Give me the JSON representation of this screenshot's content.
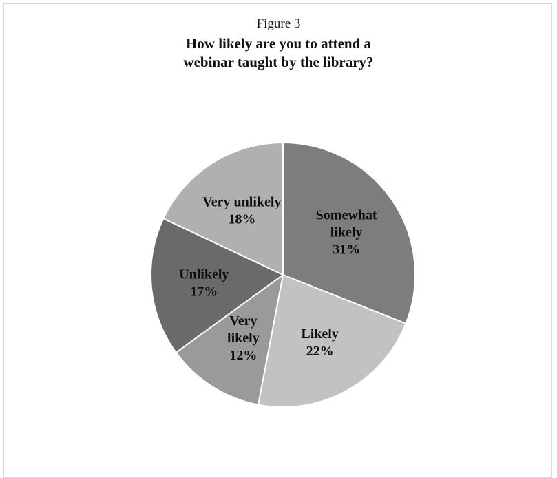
{
  "figure_label": "Figure 3",
  "chart_data": {
    "type": "pie",
    "title_lines": [
      "How likely are you to attend a",
      "webinar taught by the library?"
    ],
    "slices": [
      {
        "label": [
          "Somewhat",
          "likely"
        ],
        "pct_text": "31%",
        "value": 31,
        "color": "#7d7d7d"
      },
      {
        "label": [
          "Likely"
        ],
        "pct_text": "22%",
        "value": 22,
        "color": "#c2c2c2"
      },
      {
        "label": [
          "Very",
          "likely"
        ],
        "pct_text": "12%",
        "value": 12,
        "color": "#9a9a9a"
      },
      {
        "label": [
          "Unlikely"
        ],
        "pct_text": "17%",
        "value": 17,
        "color": "#6a6a6a"
      },
      {
        "label": [
          "Very unlikely"
        ],
        "pct_text": "18%",
        "value": 18,
        "color": "#b0b0b0"
      }
    ],
    "start_angle_deg": 0,
    "direction": "clockwise",
    "legend": "none"
  }
}
